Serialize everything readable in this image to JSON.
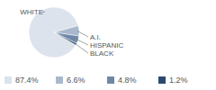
{
  "chart_data": {
    "type": "pie",
    "categories": [
      "WHITE",
      "A.I.",
      "HISPANIC",
      "BLACK"
    ],
    "values": [
      87.4,
      6.6,
      4.8,
      1.2
    ],
    "value_labels": [
      "87.4%",
      "6.6%",
      "4.8%",
      "1.2%"
    ],
    "colors": [
      "#dde3ec",
      "#a9b8cc",
      "#6f87a6",
      "#2b4a6e"
    ],
    "legend": "bottom"
  }
}
